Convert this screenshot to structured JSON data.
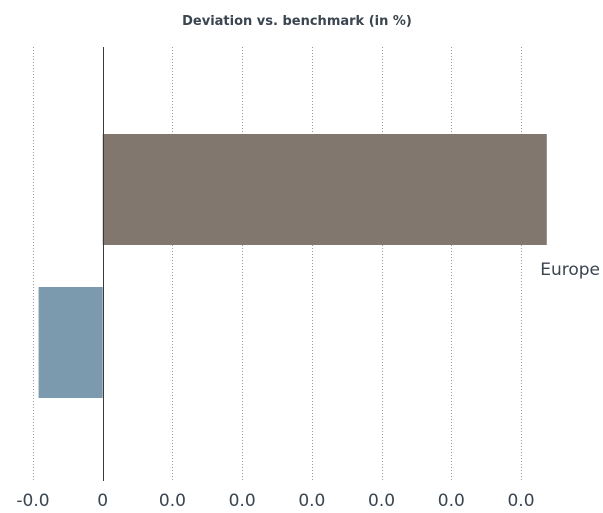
{
  "chart_data": {
    "type": "bar",
    "orientation": "horizontal",
    "title": "Deviation vs. benchmark (in %)",
    "xlabel": "",
    "ylabel": "",
    "xlim": [
      -0.01,
      0.06
    ],
    "x_ticks": [
      {
        "value": -0.01,
        "label": "-0.0"
      },
      {
        "value": 0,
        "label": "0"
      },
      {
        "value": 0.01,
        "label": "0.0"
      },
      {
        "value": 0.02,
        "label": "0.0"
      },
      {
        "value": 0.03,
        "label": "0.0"
      },
      {
        "value": 0.04,
        "label": "0.0"
      },
      {
        "value": 0.05,
        "label": "0.0"
      },
      {
        "value": 0.06,
        "label": "0.0"
      }
    ],
    "categories": [
      "Europe",
      ""
    ],
    "values": [
      0.0637,
      -0.0092
    ],
    "colors": [
      "#82776e",
      "#7b9aad"
    ],
    "grid": true,
    "legend": "none"
  }
}
